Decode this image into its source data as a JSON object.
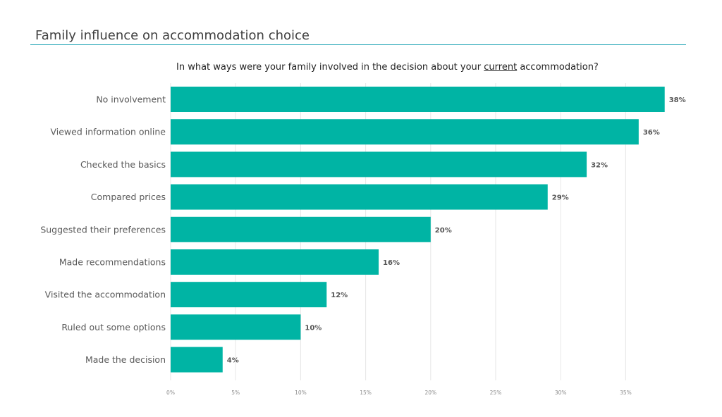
{
  "page": {
    "title": "Family influence on accommodation choice"
  },
  "question": {
    "prefix": "In what ways were your family involved in the decision about your ",
    "emphasis": "current",
    "suffix": " accommodation?"
  },
  "colors": {
    "bar": "#00b4a4",
    "accent_rule": "#29a7b8"
  },
  "chart_data": {
    "type": "bar",
    "orientation": "horizontal",
    "title": "In what ways were your family involved in the decision about your current accommodation?",
    "categories": [
      "No involvement",
      "Viewed information online",
      "Checked the basics",
      "Compared prices",
      "Suggested their preferences",
      "Made recommendations",
      "Visited the accommodation",
      "Ruled out some options",
      "Made the decision"
    ],
    "values": [
      38,
      36,
      32,
      29,
      20,
      16,
      12,
      10,
      4
    ],
    "value_labels": [
      "38%",
      "36%",
      "32%",
      "29%",
      "20%",
      "16%",
      "12%",
      "10%",
      "4%"
    ],
    "xlim": [
      0,
      38
    ],
    "ticks": [
      0,
      5,
      10,
      15,
      20,
      25,
      30,
      35
    ],
    "tick_labels": [
      "0%",
      "5%",
      "10%",
      "15%",
      "20%",
      "25%",
      "30%",
      "35%"
    ],
    "xlabel": "",
    "ylabel": "",
    "grid": true,
    "legend": "none"
  }
}
